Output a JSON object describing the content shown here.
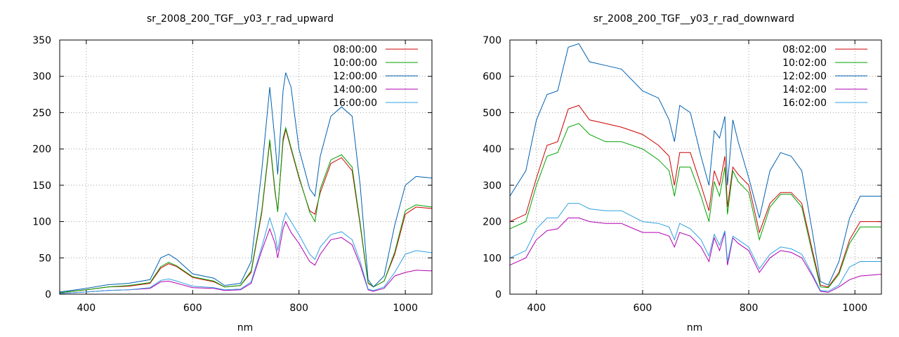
{
  "chart_data": [
    {
      "type": "line",
      "title": "sr_2008_200_TGF__y03_r_rad_upward",
      "xlabel": "nm",
      "ylabel": "",
      "xlim": [
        350,
        1050
      ],
      "ylim": [
        0,
        350
      ],
      "xticks": [
        400,
        600,
        800,
        1000
      ],
      "yticks": [
        0,
        50,
        100,
        150,
        200,
        250,
        300,
        350
      ],
      "grid": true,
      "legend": "top-right",
      "x": [
        350,
        400,
        440,
        480,
        520,
        540,
        555,
        570,
        600,
        640,
        660,
        690,
        710,
        730,
        745,
        755,
        760,
        770,
        775,
        785,
        800,
        820,
        830,
        840,
        860,
        880,
        900,
        915,
        930,
        940,
        960,
        980,
        1000,
        1020,
        1050
      ],
      "series": [
        {
          "name": "08:00:00",
          "color": "#cc0000",
          "values": [
            2,
            6,
            10,
            11,
            15,
            36,
            42,
            38,
            23,
            17,
            10,
            12,
            30,
            112,
            210,
            140,
            115,
            210,
            227,
            200,
            160,
            115,
            110,
            140,
            180,
            188,
            170,
            95,
            15,
            10,
            18,
            55,
            110,
            120,
            118
          ]
        },
        {
          "name": "10:00:00",
          "color": "#00a000",
          "values": [
            2,
            6,
            10,
            12,
            16,
            38,
            44,
            39,
            24,
            18,
            10,
            12,
            32,
            115,
            213,
            143,
            113,
            215,
            229,
            202,
            162,
            113,
            100,
            145,
            185,
            192,
            175,
            98,
            16,
            10,
            18,
            58,
            115,
            123,
            120
          ]
        },
        {
          "name": "12:00:00",
          "color": "#0060b0",
          "values": [
            3,
            8,
            13,
            15,
            20,
            50,
            55,
            48,
            28,
            22,
            12,
            15,
            45,
            170,
            285,
            210,
            165,
            280,
            305,
            285,
            200,
            145,
            135,
            190,
            245,
            258,
            245,
            150,
            20,
            10,
            25,
            95,
            150,
            162,
            160
          ]
        },
        {
          "name": "14:00:00",
          "color": "#b000b0",
          "values": [
            1,
            3,
            5,
            6,
            8,
            17,
            18,
            15,
            9,
            8,
            5,
            6,
            15,
            60,
            90,
            70,
            50,
            90,
            100,
            85,
            70,
            45,
            40,
            55,
            75,
            78,
            68,
            40,
            6,
            4,
            8,
            25,
            30,
            33,
            32
          ]
        },
        {
          "name": "16:00:00",
          "color": "#30a0e0",
          "values": [
            1,
            3,
            5,
            6,
            9,
            19,
            21,
            18,
            11,
            9,
            6,
            7,
            17,
            65,
            105,
            82,
            60,
            100,
            112,
            100,
            82,
            55,
            48,
            65,
            82,
            86,
            75,
            45,
            7,
            5,
            10,
            30,
            55,
            60,
            57
          ]
        }
      ]
    },
    {
      "type": "line",
      "title": "sr_2008_200_TGF__y03_r_rad_downward",
      "xlabel": "nm",
      "ylabel": "",
      "xlim": [
        350,
        1050
      ],
      "ylim": [
        0,
        700
      ],
      "xticks": [
        400,
        600,
        800,
        1000
      ],
      "yticks": [
        0,
        100,
        200,
        300,
        400,
        500,
        600,
        700
      ],
      "grid": true,
      "legend": "top-right",
      "x": [
        350,
        380,
        400,
        420,
        440,
        460,
        480,
        500,
        530,
        560,
        600,
        630,
        650,
        660,
        670,
        690,
        710,
        725,
        735,
        745,
        755,
        760,
        770,
        780,
        800,
        820,
        840,
        860,
        880,
        900,
        920,
        935,
        950,
        970,
        990,
        1010,
        1050
      ],
      "series": [
        {
          "name": "08:02:00",
          "color": "#cc0000",
          "values": [
            200,
            220,
            320,
            410,
            420,
            510,
            520,
            480,
            470,
            460,
            440,
            410,
            380,
            300,
            390,
            390,
            300,
            230,
            340,
            300,
            380,
            240,
            350,
            330,
            300,
            170,
            250,
            280,
            280,
            250,
            120,
            25,
            20,
            60,
            150,
            200,
            200
          ]
        },
        {
          "name": "10:02:00",
          "color": "#00a000",
          "values": [
            180,
            200,
            300,
            380,
            390,
            460,
            470,
            440,
            420,
            420,
            400,
            370,
            340,
            270,
            350,
            350,
            270,
            200,
            310,
            270,
            350,
            220,
            340,
            310,
            280,
            150,
            240,
            275,
            275,
            240,
            110,
            20,
            18,
            55,
            140,
            185,
            185
          ]
        },
        {
          "name": "12:02:00",
          "color": "#0060b0",
          "values": [
            270,
            340,
            480,
            550,
            560,
            680,
            690,
            640,
            630,
            620,
            560,
            540,
            480,
            420,
            520,
            500,
            380,
            300,
            450,
            430,
            490,
            300,
            480,
            420,
            320,
            210,
            340,
            390,
            380,
            340,
            170,
            35,
            25,
            90,
            210,
            270,
            270
          ]
        },
        {
          "name": "14:02:00",
          "color": "#b000b0",
          "values": [
            80,
            100,
            150,
            175,
            180,
            210,
            210,
            200,
            195,
            195,
            170,
            170,
            160,
            130,
            170,
            160,
            130,
            90,
            155,
            120,
            170,
            80,
            155,
            140,
            120,
            60,
            100,
            120,
            115,
            100,
            50,
            8,
            5,
            20,
            40,
            50,
            55
          ]
        },
        {
          "name": "16:02:00",
          "color": "#30a0e0",
          "values": [
            100,
            120,
            180,
            210,
            210,
            250,
            250,
            235,
            230,
            230,
            200,
            195,
            185,
            150,
            195,
            180,
            150,
            105,
            165,
            135,
            175,
            90,
            160,
            150,
            130,
            70,
            110,
            130,
            125,
            110,
            55,
            10,
            8,
            25,
            75,
            90,
            90
          ]
        }
      ]
    }
  ]
}
